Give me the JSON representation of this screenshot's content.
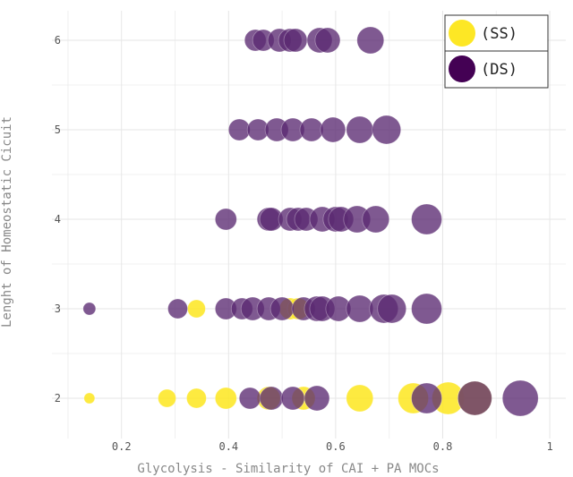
{
  "chart_data": {
    "type": "scatter",
    "title": "",
    "xlabel": "Glycolysis - Similarity of CAI + PA MOCs",
    "ylabel": "Lenght of Homeostatic Cicuit",
    "xlim": [
      0.07,
      1.03
    ],
    "ylim": [
      1.55,
      6.33
    ],
    "xticks": [
      "0.2",
      "0.4",
      "0.6",
      "0.8",
      "1"
    ],
    "yticks": [
      "2",
      "3",
      "4",
      "5",
      "6"
    ],
    "grid": true,
    "legend_position": "top-right",
    "colors": {
      "SS": "#fde725",
      "DS": "#440154",
      "DS_point": "#6a3d80",
      "overlap_mix": "#8a7a3a"
    },
    "series": [
      {
        "name": "(SS)",
        "color": "#fde725",
        "points": [
          {
            "x": 0.14,
            "y": 2,
            "size": 6
          },
          {
            "x": 0.285,
            "y": 2,
            "size": 10
          },
          {
            "x": 0.34,
            "y": 2,
            "size": 11
          },
          {
            "x": 0.395,
            "y": 2,
            "size": 12
          },
          {
            "x": 0.475,
            "y": 2,
            "size": 13
          },
          {
            "x": 0.54,
            "y": 2,
            "size": 13
          },
          {
            "x": 0.645,
            "y": 2,
            "size": 15
          },
          {
            "x": 0.745,
            "y": 2,
            "size": 17
          },
          {
            "x": 0.81,
            "y": 2,
            "size": 18
          },
          {
            "x": 0.86,
            "y": 2,
            "size": 19
          },
          {
            "x": 0.34,
            "y": 3,
            "size": 10
          },
          {
            "x": 0.515,
            "y": 3,
            "size": 12
          },
          {
            "x": 0.53,
            "y": 3,
            "size": 12
          }
        ]
      },
      {
        "name": "(DS)",
        "color": "#440154",
        "points": [
          {
            "x": 0.44,
            "y": 2,
            "size": 12
          },
          {
            "x": 0.48,
            "y": 2,
            "size": 13
          },
          {
            "x": 0.52,
            "y": 2,
            "size": 13
          },
          {
            "x": 0.565,
            "y": 2,
            "size": 14
          },
          {
            "x": 0.77,
            "y": 2,
            "size": 17
          },
          {
            "x": 0.86,
            "y": 2,
            "size": 19
          },
          {
            "x": 0.945,
            "y": 2,
            "size": 20
          },
          {
            "x": 0.14,
            "y": 3,
            "size": 7
          },
          {
            "x": 0.305,
            "y": 3,
            "size": 11
          },
          {
            "x": 0.395,
            "y": 3,
            "size": 12
          },
          {
            "x": 0.425,
            "y": 3,
            "size": 12
          },
          {
            "x": 0.445,
            "y": 3,
            "size": 13
          },
          {
            "x": 0.475,
            "y": 3,
            "size": 13
          },
          {
            "x": 0.5,
            "y": 3,
            "size": 13
          },
          {
            "x": 0.54,
            "y": 3,
            "size": 13
          },
          {
            "x": 0.565,
            "y": 3,
            "size": 14
          },
          {
            "x": 0.575,
            "y": 3,
            "size": 14
          },
          {
            "x": 0.605,
            "y": 3,
            "size": 14
          },
          {
            "x": 0.645,
            "y": 3,
            "size": 15
          },
          {
            "x": 0.69,
            "y": 3,
            "size": 16
          },
          {
            "x": 0.705,
            "y": 3,
            "size": 16
          },
          {
            "x": 0.77,
            "y": 3,
            "size": 17
          },
          {
            "x": 0.395,
            "y": 4,
            "size": 12
          },
          {
            "x": 0.475,
            "y": 4,
            "size": 13
          },
          {
            "x": 0.48,
            "y": 4,
            "size": 13
          },
          {
            "x": 0.515,
            "y": 4,
            "size": 13
          },
          {
            "x": 0.53,
            "y": 4,
            "size": 13
          },
          {
            "x": 0.545,
            "y": 4,
            "size": 13
          },
          {
            "x": 0.575,
            "y": 4,
            "size": 14
          },
          {
            "x": 0.6,
            "y": 4,
            "size": 14
          },
          {
            "x": 0.61,
            "y": 4,
            "size": 14
          },
          {
            "x": 0.64,
            "y": 4,
            "size": 15
          },
          {
            "x": 0.675,
            "y": 4,
            "size": 15
          },
          {
            "x": 0.77,
            "y": 4,
            "size": 17
          },
          {
            "x": 0.42,
            "y": 5,
            "size": 12
          },
          {
            "x": 0.455,
            "y": 5,
            "size": 12
          },
          {
            "x": 0.49,
            "y": 5,
            "size": 13
          },
          {
            "x": 0.52,
            "y": 5,
            "size": 13
          },
          {
            "x": 0.555,
            "y": 5,
            "size": 13
          },
          {
            "x": 0.595,
            "y": 5,
            "size": 14
          },
          {
            "x": 0.645,
            "y": 5,
            "size": 15
          },
          {
            "x": 0.695,
            "y": 5,
            "size": 16
          },
          {
            "x": 0.45,
            "y": 6,
            "size": 12
          },
          {
            "x": 0.465,
            "y": 6,
            "size": 12
          },
          {
            "x": 0.495,
            "y": 6,
            "size": 13
          },
          {
            "x": 0.515,
            "y": 6,
            "size": 13
          },
          {
            "x": 0.525,
            "y": 6,
            "size": 13
          },
          {
            "x": 0.57,
            "y": 6,
            "size": 14
          },
          {
            "x": 0.585,
            "y": 6,
            "size": 14
          },
          {
            "x": 0.665,
            "y": 6,
            "size": 15
          }
        ]
      }
    ]
  }
}
